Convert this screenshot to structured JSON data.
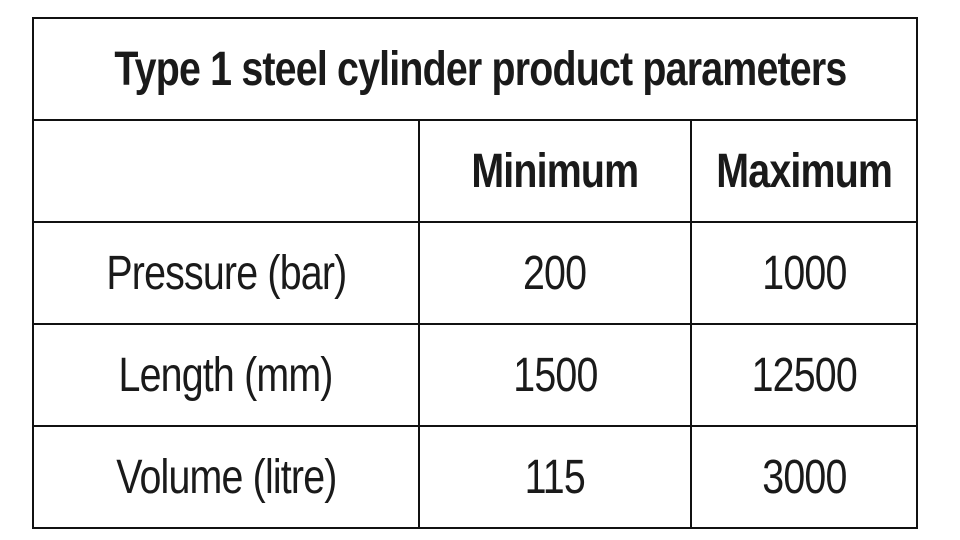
{
  "table": {
    "title": "Type 1 steel cylinder product parameters",
    "columns": [
      "",
      "Minimum",
      "Maximum"
    ],
    "rows": [
      {
        "label": "Pressure (bar)",
        "minimum": "200",
        "maximum": "1000"
      },
      {
        "label": "Length (mm)",
        "minimum": "1500",
        "maximum": "12500"
      },
      {
        "label": "Volume (litre)",
        "minimum": "115",
        "maximum": "3000"
      }
    ]
  },
  "colors": {
    "background": "#ffffff",
    "border": "#111111",
    "text": "#1a1a1a"
  }
}
